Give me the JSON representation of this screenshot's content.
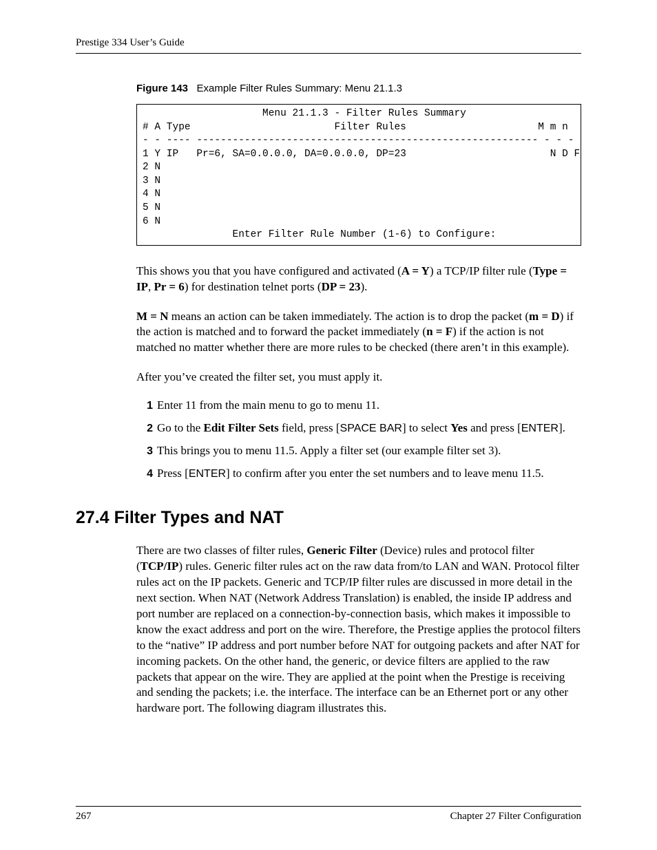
{
  "header": {
    "title": "Prestige 334 User’s Guide"
  },
  "figure": {
    "label": "Figure 143",
    "caption": "Example Filter Rules Summary: Menu 21.1.3"
  },
  "terminal": {
    "title_line": "                    Menu 21.1.3 - Filter Rules Summary",
    "header_line": "# A Type                        Filter Rules                      M m n",
    "divider_line": "- - ---- --------------------------------------------------------- - - -",
    "row1": "1 Y IP   Pr=6, SA=0.0.0.0, DA=0.0.0.0, DP=23                        N D F",
    "row2": "2 N",
    "row3": "3 N",
    "row4": "4 N",
    "row5": "5 N",
    "row6": "6 N",
    "prompt_line": "               Enter Filter Rule Number (1-6) to Configure:"
  },
  "para1": {
    "t1": "This shows you that you have configured and activated (",
    "b1": "A = Y",
    "t2": ") a TCP/IP filter rule (",
    "b2": "Type = IP",
    "t3": ", ",
    "b3": "Pr = 6",
    "t4": ") for destination telnet ports (",
    "b4": "DP = 23",
    "t5": ")."
  },
  "para2": {
    "b1": "M = N",
    "t1": " means an action can be taken immediately. The action is to drop the packet (",
    "b2": "m = D",
    "t2": ") if the action is matched and to forward the packet immediately (",
    "b3": "n = F",
    "t3": ") if the action is not matched no matter whether there are more rules to be checked (there aren’t in this example)."
  },
  "para3": {
    "t": "After you’ve created the filter set, you must apply it."
  },
  "steps": {
    "s1": {
      "n": "1",
      "t": "Enter 11 from the main menu to go to menu 11."
    },
    "s2": {
      "n": "2",
      "t1": "Go to the ",
      "b1": "Edit Filter Sets",
      "t2": " field, press [",
      "k1": "SPACE BAR",
      "t3": "] to select ",
      "b2": "Yes",
      "t4": " and press [",
      "k2": "ENTER",
      "t5": "]."
    },
    "s3": {
      "n": "3",
      "t": "This brings you to menu 11.5. Apply a filter set (our example filter set 3)."
    },
    "s4": {
      "n": "4",
      "t1": "Press [",
      "k1": "ENTER",
      "t2": "] to confirm after you enter the set numbers and to leave menu 11.5."
    }
  },
  "section": {
    "heading": "27.4  Filter Types and NAT",
    "body": {
      "t1": "There are two classes of filter rules, ",
      "b1": "Generic Filter",
      "t2": " (Device) rules and protocol filter (",
      "b2": "TCP/IP",
      "t3": ") rules. Generic filter rules act on the raw data from/to LAN and WAN. Protocol filter rules act on the IP packets. Generic and TCP/IP filter rules are discussed in more detail in the next section. When NAT  (Network Address Translation) is enabled, the inside IP address and port number are replaced on a connection-by-connection basis, which makes it impossible to know the exact address and port on the wire. Therefore, the Prestige applies the protocol filters to the “native” IP address and port number before NAT for outgoing packets and after NAT for incoming packets. On the other hand, the generic, or device filters are applied to the raw packets that appear on the wire. They are applied at the point when the Prestige is receiving and sending the packets; i.e. the interface. The interface can be an Ethernet port or any other hardware port. The following diagram illustrates this."
    }
  },
  "footer": {
    "page": "267",
    "chapter": "Chapter 27 Filter Configuration"
  }
}
